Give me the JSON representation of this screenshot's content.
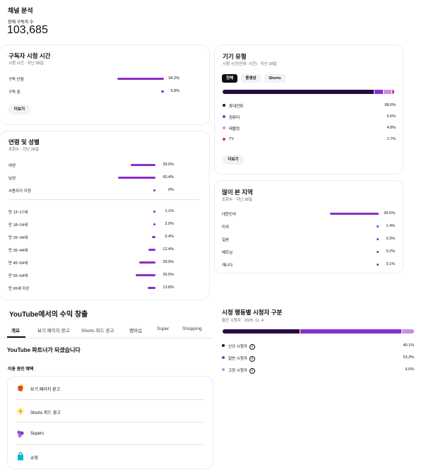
{
  "header": {
    "title": "채널 분석",
    "subscribers_label": "현재 구독자 수",
    "subscribers_value": "103,685"
  },
  "watch_time": {
    "title": "구독자 시청 시간",
    "subtitle": "시청 시간 · 지난 28일",
    "rows": [
      {
        "label": "구독 안함",
        "pct": "94.2%",
        "value": 94.2
      },
      {
        "label": "구독 중",
        "pct": "5.8%",
        "value": 5.8
      }
    ],
    "more_label": "더보기"
  },
  "age_gender": {
    "title": "연령 및 성별",
    "subtitle": "조회수 · 지난 28일",
    "gender_rows": [
      {
        "label": "여성",
        "pct": "39.6%",
        "value": 39.6
      },
      {
        "label": "남성",
        "pct": "60.4%",
        "value": 60.4
      },
      {
        "label": "사용자가 지정",
        "pct": "0%",
        "value": 0
      }
    ],
    "age_rows": [
      {
        "label": "만 13~17세",
        "pct": "1.1%",
        "value": 1.1
      },
      {
        "label": "만 18~24세",
        "pct": "2.0%",
        "value": 2.0
      },
      {
        "label": "만 25~34세",
        "pct": "6.4%",
        "value": 6.4
      },
      {
        "label": "만 35~44세",
        "pct": "12.4%",
        "value": 12.4
      },
      {
        "label": "만 45~54세",
        "pct": "28.9%",
        "value": 28.9
      },
      {
        "label": "만 55~64세",
        "pct": "35.5%",
        "value": 35.5
      },
      {
        "label": "만 65세 이상",
        "pct": "13.8%",
        "value": 13.8
      }
    ]
  },
  "device": {
    "title": "기기 유형",
    "subtitle": "시청 시간(단위: 시간) · 지난 28일",
    "chips": [
      "전체",
      "동영상",
      "Shorts"
    ],
    "active_chip": 0,
    "rows": [
      {
        "label": "휴대전화",
        "pct": "88.0%",
        "value": 88.0,
        "color": "#2b0b3f"
      },
      {
        "label": "컴퓨터",
        "pct": "5.6%",
        "value": 5.6,
        "color": "#8b2fc9"
      },
      {
        "label": "태블릿",
        "pct": "4.8%",
        "value": 4.8,
        "color": "#c98ee8"
      },
      {
        "label": "TV",
        "pct": "1.7%",
        "value": 1.7,
        "color": "#d6257a"
      }
    ],
    "more_label": "더보기"
  },
  "regions": {
    "title": "많이 본 지역",
    "subtitle": "조회수 · 지난 28일",
    "rows": [
      {
        "label": "대한민국",
        "pct": "95.5%",
        "value": 95.5
      },
      {
        "label": "미국",
        "pct": "1.4%",
        "value": 1.4
      },
      {
        "label": "일본",
        "pct": "0.3%",
        "value": 0.3
      },
      {
        "label": "베트남",
        "pct": "0.2%",
        "value": 0.2
      },
      {
        "label": "캐나다",
        "pct": "0.1%",
        "value": 0.1
      }
    ]
  },
  "monetize": {
    "title": "YouTube에서의 수익 창출",
    "tabs": [
      "개요",
      "보기 페이지 광고",
      "Shorts 피드 광고",
      "멤버십",
      "Super",
      "Shopping"
    ],
    "active_tab": 0,
    "partner_heading": "YouTube 파트너가 되셨습니다",
    "benefits_heading": "이용 중인 혜택",
    "benefits": [
      {
        "label": "보기 페이지 광고",
        "icon": "watch-page-ads-icon"
      },
      {
        "label": "Shorts 피드 광고",
        "icon": "shorts-feed-ads-icon"
      },
      {
        "label": "Supers",
        "icon": "supers-icon"
      },
      {
        "label": "쇼핑",
        "icon": "shopping-icon"
      }
    ]
  },
  "viewer_behavior": {
    "title": "시청 행동별 시청자 구분",
    "subtitle": "월간 시청자 · 2025. 11. 4.",
    "rows": [
      {
        "label": "신규 시청자",
        "pct": "40.1%",
        "value": 40.1,
        "color": "#2b0b3f"
      },
      {
        "label": "일반 시청자",
        "pct": "53.3%",
        "value": 53.3,
        "color": "#8b2fc9"
      },
      {
        "label": "고정 시청자",
        "pct": "6.6%",
        "value": 6.6,
        "color": "#c98ee8"
      }
    ]
  },
  "colors": {
    "accent": "#8b2fc9",
    "dark": "#2b0b3f",
    "light": "#c98ee8",
    "pink": "#d6257a"
  }
}
